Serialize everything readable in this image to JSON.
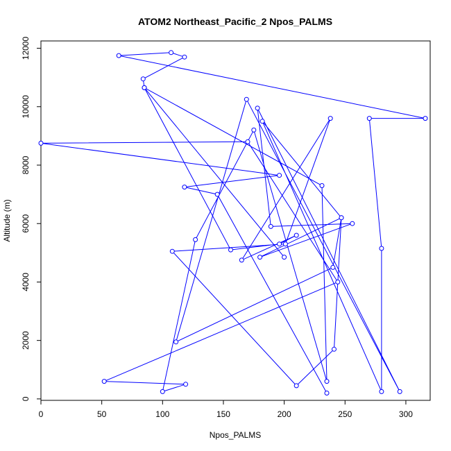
{
  "chart_data": {
    "type": "line",
    "title": "ATOM2 Northeast_Pacific_2 Npos_PALMS",
    "xlabel": "Npos_PALMS",
    "ylabel": "Altitude (m)",
    "xlim": [
      0,
      320
    ],
    "ylim": [
      -50,
      12250
    ],
    "x_ticks": [
      0,
      50,
      100,
      150,
      200,
      250,
      300
    ],
    "y_ticks": [
      0,
      2000,
      4000,
      6000,
      8000,
      10000,
      12000
    ],
    "grid": false,
    "legend": "none",
    "marker": "open-circle",
    "color": "#0000ff",
    "series": [
      {
        "points": [
          [
            235,
            200
          ],
          [
            145,
            7000
          ],
          [
            118,
            7250
          ],
          [
            196,
            7650
          ],
          [
            0,
            8750
          ],
          [
            170,
            8800
          ],
          [
            244,
            4000
          ],
          [
            52,
            600
          ],
          [
            119,
            500
          ],
          [
            100,
            250
          ],
          [
            127,
            5450
          ],
          [
            175,
            9200
          ],
          [
            235,
            600
          ],
          [
            231,
            7300
          ],
          [
            85,
            10650
          ],
          [
            156,
            5100
          ],
          [
            196,
            5300
          ],
          [
            210,
            5600
          ],
          [
            165,
            4750
          ],
          [
            238,
            9600
          ],
          [
            201,
            5300
          ],
          [
            108,
            5050
          ],
          [
            210,
            450
          ],
          [
            241,
            1700
          ],
          [
            247,
            6200
          ],
          [
            240,
            4500
          ],
          [
            111,
            1950
          ],
          [
            169,
            10250
          ],
          [
            295,
            250
          ],
          [
            178,
            9950
          ],
          [
            189,
            5900
          ],
          [
            256,
            6000
          ],
          [
            180,
            4850
          ],
          [
            247,
            6200
          ],
          [
            182,
            9500
          ],
          [
            280,
            250
          ],
          [
            280,
            5150
          ],
          [
            270,
            9600
          ],
          [
            316,
            9600
          ],
          [
            64,
            11750
          ],
          [
            107,
            11850
          ],
          [
            118,
            11700
          ],
          [
            84,
            10950
          ],
          [
            85,
            10650
          ],
          [
            200,
            4850
          ]
        ]
      }
    ]
  }
}
